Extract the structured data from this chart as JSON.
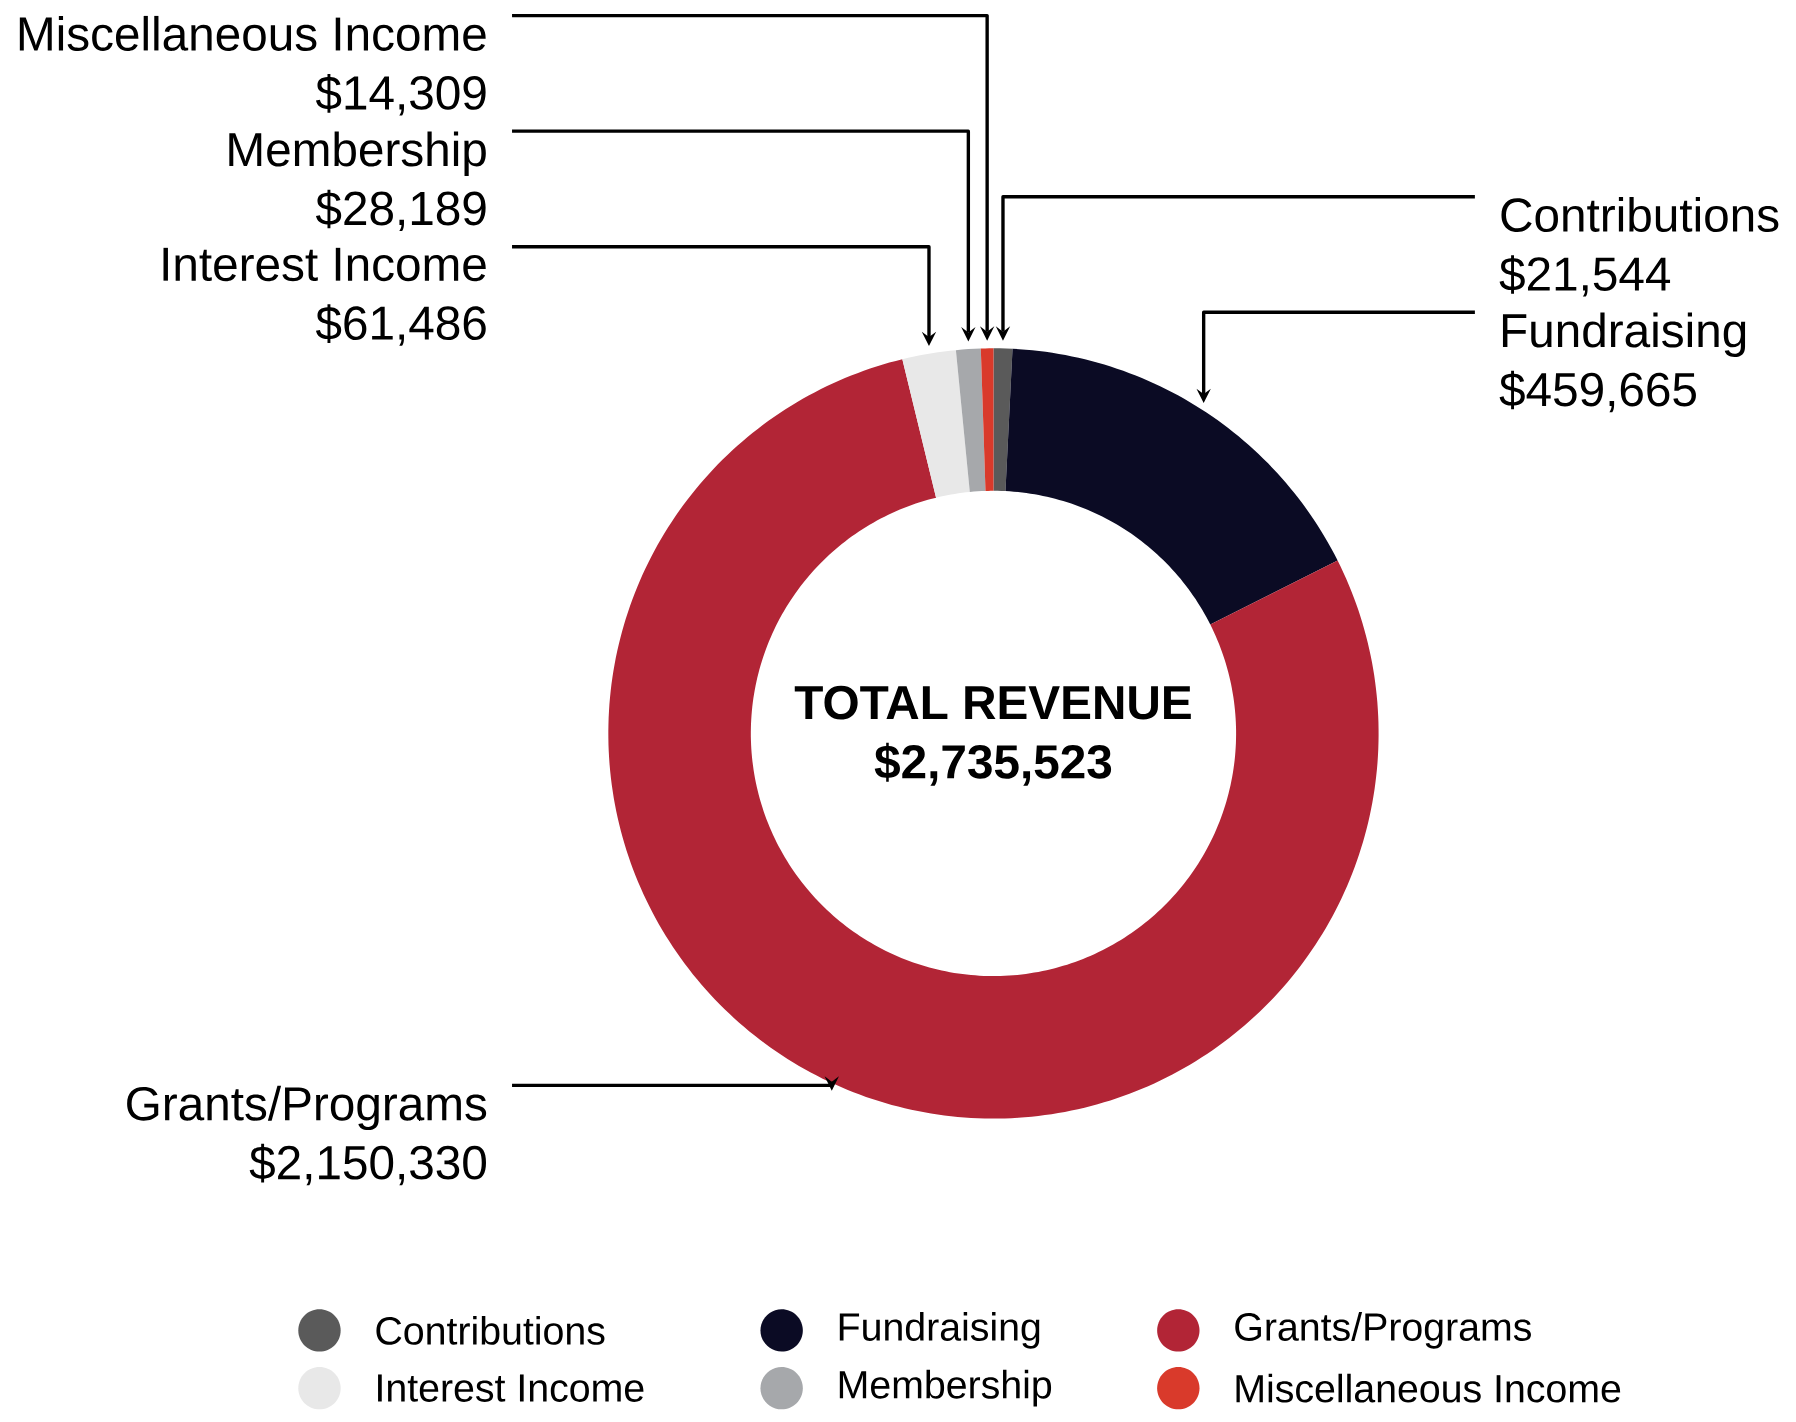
{
  "chart_data": {
    "type": "donut",
    "categories": [
      "Contributions",
      "Fundraising",
      "Grants/Programs",
      "Interest Income",
      "Membership",
      "Miscellaneous Income"
    ],
    "values": [
      21544,
      459665,
      2150330,
      61486,
      28189,
      14309
    ],
    "value_labels": [
      "$21,544",
      "$459,665",
      "$2,150,330",
      "$61,486",
      "$28,189",
      "$14,309"
    ],
    "colors": [
      "#5a5a5a",
      "#0b0b24",
      "#b22536",
      "#e8e8e8",
      "#a6a8ab",
      "#d93a2b"
    ],
    "annotations": [
      "TOTAL REVENUE",
      "$2,735,523"
    ],
    "legend": "bottom"
  }
}
